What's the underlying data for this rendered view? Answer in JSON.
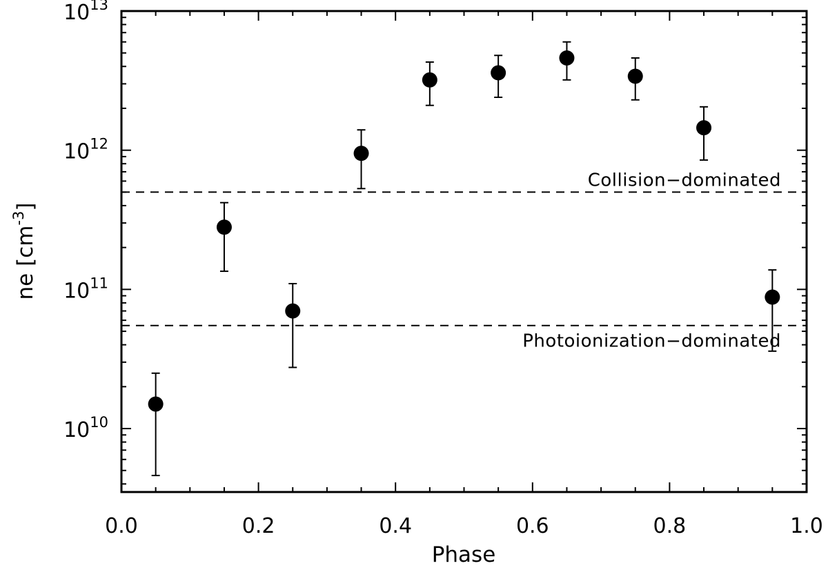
{
  "chart_data": {
    "type": "scatter",
    "xlabel": "Phase",
    "ylabel": "ne [cm",
    "ylabel_exp": "-3",
    "ylabel_close": "]",
    "xlim": [
      0.0,
      1.0
    ],
    "ylim": [
      3500000000.0,
      10000000000000.0
    ],
    "yscale": "log",
    "x_ticks": [
      {
        "value": 0.0,
        "label": "0.0"
      },
      {
        "value": 0.2,
        "label": "0.2"
      },
      {
        "value": 0.4,
        "label": "0.4"
      },
      {
        "value": 0.6,
        "label": "0.6"
      },
      {
        "value": 0.8,
        "label": "0.8"
      },
      {
        "value": 1.0,
        "label": "1.0"
      }
    ],
    "y_ticks": [
      {
        "value": 10000000000.0,
        "base": "10",
        "exp": "10"
      },
      {
        "value": 100000000000.0,
        "base": "10",
        "exp": "11"
      },
      {
        "value": 1000000000000.0,
        "base": "10",
        "exp": "12"
      },
      {
        "value": 10000000000000.0,
        "base": "10",
        "exp": "13"
      }
    ],
    "points": [
      {
        "x": 0.05,
        "y": 15000000000.0,
        "err_low": 4600000000.0,
        "err_high": 25000000000.0
      },
      {
        "x": 0.15,
        "y": 280000000000.0,
        "err_low": 135000000000.0,
        "err_high": 420000000000.0
      },
      {
        "x": 0.25,
        "y": 70000000000.0,
        "err_low": 27500000000.0,
        "err_high": 110000000000.0
      },
      {
        "x": 0.35,
        "y": 950000000000.0,
        "err_low": 530000000000.0,
        "err_high": 1400000000000.0
      },
      {
        "x": 0.45,
        "y": 3200000000000.0,
        "err_low": 2100000000000.0,
        "err_high": 4300000000000.0
      },
      {
        "x": 0.55,
        "y": 3600000000000.0,
        "err_low": 2400000000000.0,
        "err_high": 4800000000000.0
      },
      {
        "x": 0.65,
        "y": 4600000000000.0,
        "err_low": 3200000000000.0,
        "err_high": 6000000000000.0
      },
      {
        "x": 0.75,
        "y": 3400000000000.0,
        "err_low": 2300000000000.0,
        "err_high": 4600000000000.0
      },
      {
        "x": 0.85,
        "y": 1450000000000.0,
        "err_low": 850000000000.0,
        "err_high": 2050000000000.0
      },
      {
        "x": 0.95,
        "y": 88000000000.0,
        "err_low": 36000000000.0,
        "err_high": 138000000000.0
      }
    ],
    "reference_lines": [
      {
        "y": 500000000000.0,
        "label": "Collision−dominated",
        "label_position": "above"
      },
      {
        "y": 55000000000.0,
        "label": "Photoionization−dominated",
        "label_position": "below"
      }
    ],
    "grid": false,
    "marker": "filled-circle",
    "color": "#000000"
  }
}
